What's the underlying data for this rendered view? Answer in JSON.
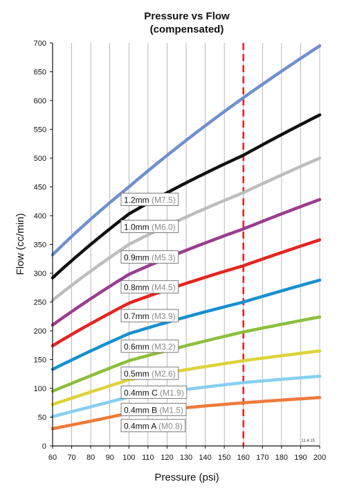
{
  "chart_data": {
    "type": "line",
    "title": "Pressure vs Flow",
    "subtitle": "(compensated)",
    "xlabel": "Pressure (psi)",
    "ylabel": "Flow (cc/min)",
    "xlim": [
      60,
      200
    ],
    "ylim": [
      0,
      700
    ],
    "xticks": [
      60,
      70,
      80,
      90,
      100,
      110,
      120,
      130,
      140,
      150,
      160,
      170,
      180,
      190,
      200
    ],
    "yticks": [
      0,
      50,
      100,
      150,
      200,
      250,
      300,
      350,
      400,
      450,
      500,
      550,
      600,
      650,
      700
    ],
    "grid": "vertical",
    "reference_line": {
      "x": 160,
      "color": "#e52421",
      "style": "dashed"
    },
    "stamp": "11.4.15",
    "series": [
      {
        "name": "1.2mm",
        "sub": "(M7.5)",
        "color": "#6f8fcf",
        "x": [
          60,
          100,
          160,
          200
        ],
        "values": [
          332,
          450,
          605,
          695
        ]
      },
      {
        "name": "1.0mm",
        "sub": "(M6.0)",
        "color": "#111111",
        "x": [
          60,
          100,
          160,
          200
        ],
        "values": [
          292,
          403,
          505,
          575
        ]
      },
      {
        "name": "0.9mm",
        "sub": "(M5.3)",
        "color": "#bdbdbd",
        "x": [
          60,
          100,
          160,
          200
        ],
        "values": [
          253,
          350,
          440,
          500
        ]
      },
      {
        "name": "0.8mm",
        "sub": "(M4.5)",
        "color": "#9b3d8c",
        "x": [
          60,
          100,
          160,
          200
        ],
        "values": [
          210,
          298,
          377,
          428
        ]
      },
      {
        "name": "0.7mm",
        "sub": "(M3.9)",
        "color": "#e52421",
        "x": [
          60,
          100,
          160,
          200
        ],
        "values": [
          174,
          248,
          313,
          358
        ]
      },
      {
        "name": "0.6mm",
        "sub": "(M3.2)",
        "color": "#1690d0",
        "x": [
          60,
          100,
          160,
          200
        ],
        "values": [
          133,
          195,
          250,
          288
        ]
      },
      {
        "name": "0.5mm",
        "sub": "(M2.6)",
        "color": "#8dbf3c",
        "x": [
          60,
          100,
          160,
          200
        ],
        "values": [
          95,
          148,
          198,
          224
        ]
      },
      {
        "name": "0.4mm C",
        "sub": "(M1.9)",
        "color": "#dcd33a",
        "x": [
          60,
          100,
          160,
          200
        ],
        "values": [
          72,
          115,
          148,
          165
        ]
      },
      {
        "name": "0.4mm B",
        "sub": "(M1.5)",
        "color": "#86cff0",
        "x": [
          60,
          100,
          160,
          200
        ],
        "values": [
          51,
          85,
          110,
          121
        ]
      },
      {
        "name": "0.4mm A",
        "sub": "(M0.8)",
        "color": "#ee7a3a",
        "x": [
          60,
          100,
          160,
          200
        ],
        "values": [
          30,
          57,
          75,
          84
        ]
      }
    ]
  }
}
